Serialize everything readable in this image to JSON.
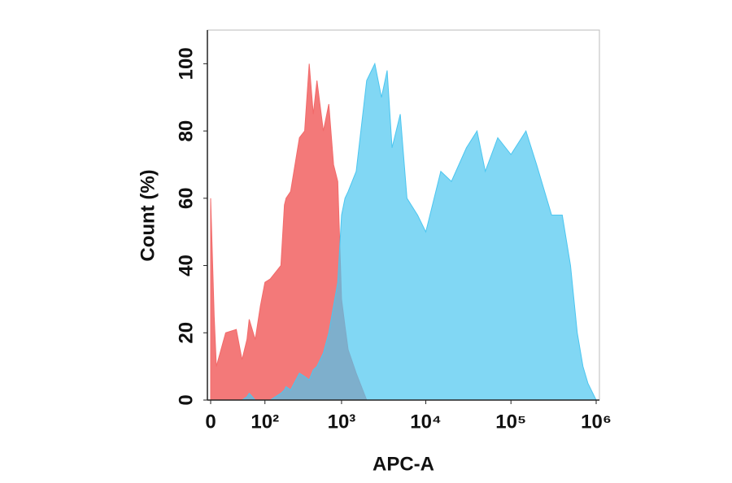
{
  "chart_data": {
    "type": "area",
    "xlabel": "APC-A",
    "ylabel": "Count  (%)",
    "xscale": "biexponential",
    "x": [
      0,
      3,
      5,
      15,
      30,
      40,
      50,
      55,
      70,
      85,
      100,
      120,
      170,
      190,
      200,
      230,
      300,
      350,
      400,
      450,
      500,
      600,
      700,
      800,
      900,
      1000,
      1100,
      1200,
      1500,
      2000,
      2500,
      3000,
      3500,
      4000,
      5000,
      6000,
      8000,
      10000,
      15000,
      20000,
      30000,
      40000,
      50000,
      70000,
      100000,
      150000,
      200000,
      300000,
      400000,
      500000,
      600000,
      700000,
      800000,
      1000000
    ],
    "series": [
      {
        "color": "#f26a6a",
        "values": [
          60,
          25,
          10,
          20,
          21,
          12,
          18,
          24,
          18,
          28,
          35,
          36,
          40,
          58,
          60,
          62,
          78,
          80,
          100,
          85,
          95,
          80,
          88,
          70,
          65,
          30,
          22,
          15,
          8,
          0,
          null,
          null,
          null,
          null,
          null,
          null,
          null,
          null,
          null,
          null,
          null,
          null,
          null,
          null,
          null,
          null,
          null,
          null,
          null,
          null,
          null,
          null,
          null,
          null
        ]
      },
      {
        "color": "#4cc6f0",
        "values": [
          0,
          0,
          0,
          0,
          0,
          0,
          1,
          2,
          0,
          0,
          0,
          0,
          2,
          3,
          4,
          3,
          8,
          7,
          6,
          9,
          10,
          14,
          20,
          28,
          35,
          55,
          60,
          62,
          68,
          95,
          100,
          90,
          98,
          75,
          85,
          60,
          55,
          50,
          68,
          65,
          75,
          80,
          68,
          78,
          73,
          80,
          70,
          55,
          55,
          40,
          20,
          10,
          5,
          0
        ]
      }
    ],
    "xlim": [
      0,
      1000000
    ],
    "xticks": [
      0,
      {
        "value": 100,
        "label": "10²"
      },
      {
        "value": 1000,
        "label": "10³"
      },
      {
        "value": 10000,
        "label": "10⁴"
      },
      {
        "value": 100000,
        "label": "10⁵"
      },
      {
        "value": 1000000,
        "label": "10⁶"
      }
    ],
    "ylim": [
      0,
      110
    ],
    "yticks": [
      0,
      20,
      40,
      60,
      80,
      100
    ]
  }
}
